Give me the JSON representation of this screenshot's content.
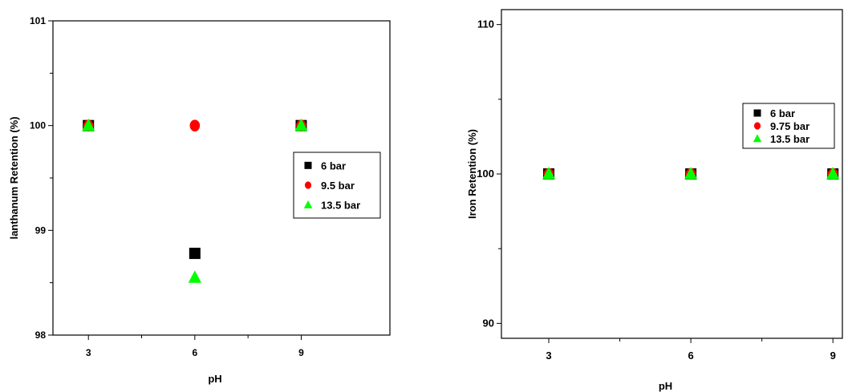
{
  "chart_data": [
    {
      "type": "scatter",
      "title": "",
      "xlabel": "pH",
      "ylabel": "lanthanum Retention (%)",
      "xlim": [
        2,
        11.5
      ],
      "ylim": [
        98,
        101
      ],
      "xticks": [
        3,
        6,
        9
      ],
      "yticks": [
        98,
        99,
        100,
        101
      ],
      "x_tick_labels": [
        "3",
        "6",
        "9"
      ],
      "y_tick_labels": [
        "98",
        "99",
        "100",
        "101"
      ],
      "grid": false,
      "legend_position": "right",
      "series": [
        {
          "name": "6 bar",
          "marker": "square",
          "color": "#000000",
          "x": [
            3,
            6,
            9
          ],
          "y": [
            100,
            98.78,
            100
          ]
        },
        {
          "name": "9.5 bar",
          "marker": "circle",
          "color": "#ff0000",
          "x": [
            3,
            6,
            9
          ],
          "y": [
            100,
            100,
            100
          ]
        },
        {
          "name": "13.5 bar",
          "marker": "triangle",
          "color": "#00ff00",
          "x": [
            3,
            6,
            9
          ],
          "y": [
            100,
            98.55,
            100
          ]
        }
      ]
    },
    {
      "type": "scatter",
      "title": "",
      "xlabel": "pH",
      "ylabel": "Iron Retention (%)",
      "xlim": [
        2,
        9.2
      ],
      "ylim": [
        89,
        111
      ],
      "xticks": [
        3,
        6,
        9
      ],
      "yticks": [
        90,
        100,
        110
      ],
      "x_tick_labels": [
        "3",
        "6",
        "9"
      ],
      "y_tick_labels": [
        "90",
        "100",
        "110"
      ],
      "grid": false,
      "legend_position": "top-right",
      "series": [
        {
          "name": "6 bar",
          "marker": "square",
          "color": "#000000",
          "x": [
            3,
            6,
            9
          ],
          "y": [
            100,
            100,
            100
          ]
        },
        {
          "name": "9.75 bar",
          "marker": "circle",
          "color": "#ff0000",
          "x": [
            3,
            6,
            9
          ],
          "y": [
            100,
            100,
            100
          ]
        },
        {
          "name": "13.5 bar",
          "marker": "triangle",
          "color": "#00ff00",
          "x": [
            3,
            6,
            9
          ],
          "y": [
            100,
            100,
            100
          ]
        }
      ]
    }
  ]
}
